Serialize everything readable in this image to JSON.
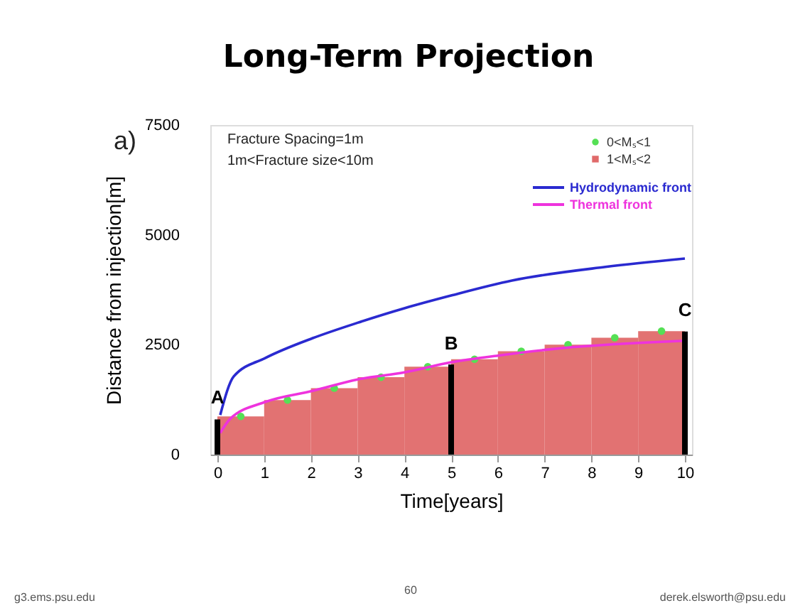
{
  "chart_data": {
    "type": "line",
    "title": "Long-Term Projection",
    "xlabel": "Time[years]",
    "ylabel": "Distance from injection[m]",
    "xlim": [
      0,
      10
    ],
    "ylim": [
      0,
      7500
    ],
    "xticks": [
      0,
      1,
      2,
      3,
      4,
      5,
      6,
      7,
      8,
      9,
      10
    ],
    "yticks": [
      0,
      2500,
      5000,
      7500
    ],
    "grid": false,
    "legend": "top right",
    "series": [
      {
        "name": "0<Mₛ<1",
        "type": "scatter",
        "marker": "circle",
        "color": "#55e055",
        "x": [
          0.5,
          1.5,
          2.5,
          3.5,
          4.5,
          5.5,
          6.5,
          7.5,
          8.5,
          9.5
        ],
        "values": [
          870,
          1240,
          1510,
          1760,
          2000,
          2170,
          2350,
          2500,
          2660,
          2810
        ]
      },
      {
        "name": "1<Mₛ<2",
        "type": "bar",
        "color": "#e06a6a",
        "x": [
          0.5,
          1.5,
          2.5,
          3.5,
          4.5,
          5.5,
          6.5,
          7.5,
          8.5,
          9.5
        ],
        "values": [
          870,
          1240,
          1510,
          1760,
          2000,
          2170,
          2350,
          2500,
          2660,
          2810
        ]
      },
      {
        "type": "bar",
        "color": "#000000",
        "x": [
          0,
          5,
          10
        ],
        "values": [
          800,
          2050,
          2800
        ]
      },
      {
        "name": "Hydrodynamic front",
        "color": "#2a2ad0",
        "x": [
          0.06,
          0.35,
          1.03,
          2.04,
          3.0,
          4.0,
          5.0,
          6.3,
          8.3,
          10
        ],
        "values": [
          900,
          1780,
          2200,
          2650,
          3000,
          3330,
          3620,
          3960,
          4270,
          4460
        ]
      },
      {
        "name": "Thermal front",
        "color": "#ee33dd",
        "x": [
          0.06,
          0.27,
          1.03,
          2.04,
          3.0,
          4.0,
          5.0,
          6.05,
          7.35,
          10
        ],
        "values": [
          490,
          810,
          1200,
          1450,
          1710,
          1870,
          2100,
          2260,
          2420,
          2590
        ]
      }
    ],
    "annotations": [
      "a)",
      "Fracture Spacing=1m",
      "1m<Fracture size<10m",
      {
        "text": "A",
        "x": 0,
        "y": 810
      },
      {
        "text": "B",
        "x": 5,
        "y": 2040
      },
      {
        "text": "C",
        "x": 10,
        "y": 2800
      },
      "g3.ems.psu.edu",
      "60",
      "derek.elsworth@psu.edu"
    ]
  }
}
